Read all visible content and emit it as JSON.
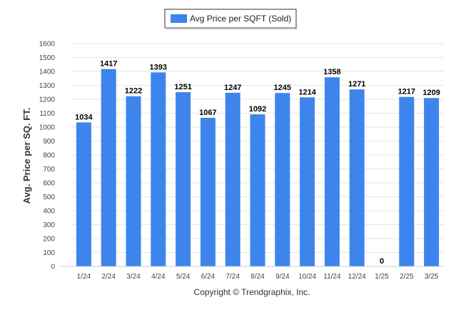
{
  "chart_data": {
    "type": "bar",
    "categories": [
      "1/24",
      "2/24",
      "3/24",
      "4/24",
      "5/24",
      "6/24",
      "7/24",
      "8/24",
      "9/24",
      "10/24",
      "11/24",
      "12/24",
      "1/25",
      "2/25",
      "3/25"
    ],
    "series": [
      {
        "name": "Avg Price per SQFT (Sold)",
        "values": [
          1034,
          1417,
          1222,
          1393,
          1251,
          1067,
          1247,
          1092,
          1245,
          1214,
          1358,
          1271,
          0,
          1217,
          1209
        ]
      }
    ],
    "ylabel": "Avg. Price per SQ. FT.",
    "xlabel": "",
    "ylim": [
      0,
      1600
    ],
    "ytick_step": 100,
    "grid": true,
    "legend_position": "top-center",
    "bar_color": "#3d85ed"
  },
  "footer": "Copyright © Trendgraphix, Inc."
}
